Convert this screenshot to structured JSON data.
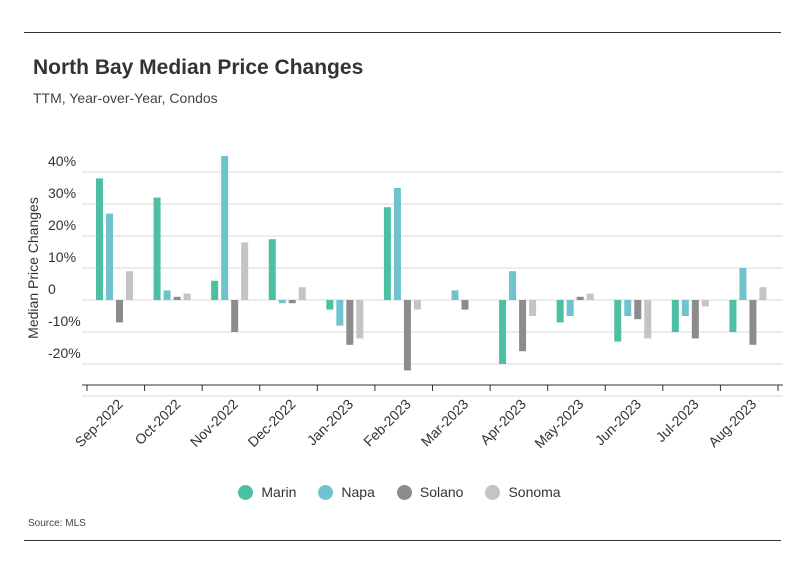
{
  "header": {
    "title": "North Bay Median Price Changes",
    "subtitle": "TTM, Year-over-Year, Condos"
  },
  "footer": {
    "source": "Source: MLS"
  },
  "chart_data": {
    "type": "bar",
    "ylabel": "Median Price Changes",
    "ylim": [
      -25,
      45
    ],
    "grid": true,
    "legend_position": "bottom-center",
    "y_ticks": [
      {
        "value": 40,
        "label": "40%"
      },
      {
        "value": 30,
        "label": "30%"
      },
      {
        "value": 20,
        "label": "20%"
      },
      {
        "value": 10,
        "label": "10%"
      },
      {
        "value": 0,
        "label": "0"
      },
      {
        "value": -10,
        "label": "-10%"
      },
      {
        "value": -20,
        "label": "-20%"
      }
    ],
    "categories": [
      "Sep-2022",
      "Oct-2022",
      "Nov-2022",
      "Dec-2022",
      "Jan-2023",
      "Feb-2023",
      "Mar-2023",
      "Apr-2023",
      "May-2023",
      "Jun-2023",
      "Jul-2023",
      "Aug-2023"
    ],
    "series": [
      {
        "name": "Marin",
        "color": "#4dbfa3",
        "values": [
          38,
          32,
          6,
          19,
          -3,
          29,
          0,
          -20,
          -7,
          -13,
          -10,
          -10
        ]
      },
      {
        "name": "Napa",
        "color": "#6fc3cd",
        "values": [
          27,
          3,
          45,
          -1,
          -8,
          35,
          3,
          9,
          -5,
          -5,
          -5,
          10
        ]
      },
      {
        "name": "Solano",
        "color": "#8c8c8c",
        "values": [
          -7,
          1,
          -10,
          -1,
          -14,
          -22,
          -3,
          -16,
          1,
          -6,
          -12,
          -14
        ]
      },
      {
        "name": "Sonoma",
        "color": "#c4c4c4",
        "values": [
          9,
          2,
          18,
          4,
          -12,
          -3,
          0,
          -5,
          2,
          -12,
          -2,
          4
        ]
      }
    ]
  }
}
